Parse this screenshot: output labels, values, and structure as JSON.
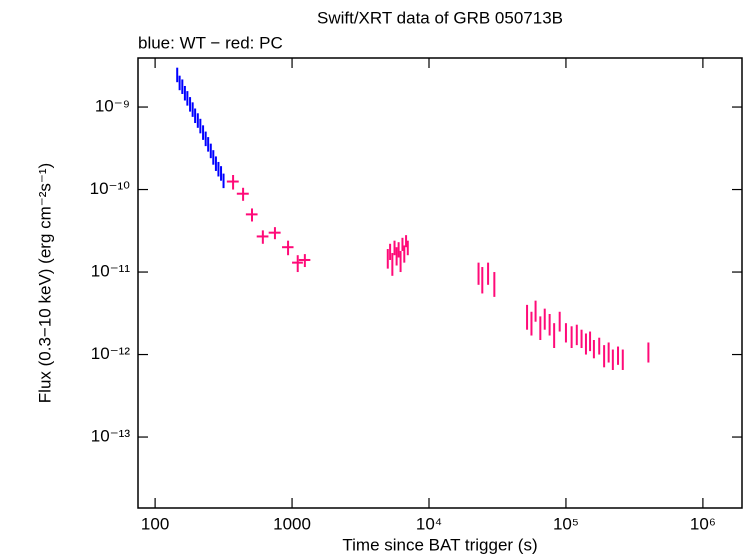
{
  "chart_data": {
    "type": "errorbar",
    "title": "Swift/XRT data of GRB 050713B",
    "subtitle": "blue: WT − red: PC",
    "x_label": "Time since BAT trigger (s)",
    "y_label": "Flux (0.3−10 keV) (erg cm⁻²s⁻¹)",
    "xscale": "log",
    "yscale": "log",
    "xlim": [
      75,
      1930000
    ],
    "ylim": [
      1.38e-14,
      3.93e-09
    ],
    "xticks": [
      100,
      1000,
      {
        "value": 10000,
        "label": "10⁴"
      },
      {
        "value": 100000,
        "label": "10⁵"
      },
      {
        "value": 1000000,
        "label": "10⁶"
      }
    ],
    "yticks": [
      {
        "value": 1e-09,
        "label": "10⁻⁹"
      },
      {
        "value": 1e-10,
        "label": "10⁻¹⁰"
      },
      {
        "value": 1e-11,
        "label": "10⁻¹¹"
      },
      {
        "value": 1e-12,
        "label": "10⁻¹²"
      },
      {
        "value": 1e-13,
        "label": "10⁻¹³"
      }
    ],
    "series": [
      {
        "name": "WT",
        "color": "#0000ff",
        "x": [
          145,
          151,
          158,
          165,
          172,
          180,
          188,
          196,
          205,
          214,
          224,
          234,
          244,
          255,
          266,
          278,
          290,
          303,
          316
        ],
        "values": [
          2.5e-09,
          2e-09,
          1.8e-09,
          1.5e-09,
          1.3e-09,
          1.1e-09,
          9.5e-10,
          8e-10,
          7e-10,
          6e-10,
          5e-10,
          4.2e-10,
          3.6e-10,
          3e-10,
          2.5e-10,
          2.1e-10,
          1.8e-10,
          1.6e-10,
          1.3e-10
        ],
        "errors": [
          5e-10,
          4e-10,
          3.6e-10,
          3e-10,
          2.6e-10,
          2.2e-10,
          1.9e-10,
          1.6e-10,
          1.4e-10,
          1.2e-10,
          1e-10,
          8.4e-11,
          7.2e-11,
          6e-11,
          5e-11,
          4.2e-11,
          3.6e-11,
          3.2e-11,
          2.6e-11
        ]
      },
      {
        "name": "PC",
        "color": "#ff0a78",
        "x": [
          371,
          439,
          510,
          612,
          750,
          935,
          1100,
          1240,
          5000,
          5200,
          5400,
          5600,
          5800,
          6000,
          6200,
          6400,
          6600,
          6800,
          7000,
          23000,
          24500,
          27000,
          30000,
          52000,
          56000,
          60000,
          65000,
          70000,
          76000,
          82000,
          90000,
          100000,
          110000,
          120000,
          130000,
          140000,
          150000,
          160000,
          175000,
          190000,
          205000,
          220000,
          240000,
          260000,
          400000
        ],
        "x_errors": [
          37,
          44,
          50,
          60,
          75,
          90,
          100,
          120,
          null,
          null,
          null,
          null,
          null,
          null,
          null,
          null,
          null,
          null,
          null,
          null,
          null,
          null,
          null,
          null,
          null,
          null,
          null,
          null,
          null,
          null,
          null,
          null,
          null,
          null,
          null,
          null,
          null,
          null,
          null,
          null,
          null,
          null,
          null,
          null,
          null
        ],
        "values": [
          1.25e-10,
          8.9e-11,
          5e-11,
          2.7e-11,
          3e-11,
          2e-11,
          1.3e-11,
          1.4e-11,
          1.5e-11,
          1.8e-11,
          1.3e-11,
          2e-11,
          1.6e-11,
          1.9e-11,
          1.4e-11,
          2.2e-11,
          1.7e-11,
          2.4e-11,
          2e-11,
          1e-11,
          8.5e-12,
          1e-11,
          7.5e-12,
          3e-12,
          2.5e-12,
          3.5e-12,
          2.2e-12,
          2.8e-12,
          2.4e-12,
          1.8e-12,
          2.6e-12,
          1.9e-12,
          1.7e-12,
          1.8e-12,
          1.6e-12,
          1.4e-12,
          1.5e-12,
          1.2e-12,
          1.3e-12,
          1e-12,
          1.1e-12,
          9e-13,
          1e-12,
          9e-13,
          1.1e-12
        ],
        "errors": [
          2.5e-11,
          1.6e-11,
          9e-12,
          5e-12,
          5e-12,
          4e-12,
          3e-12,
          2.5e-12,
          4e-12,
          4e-12,
          4e-12,
          4e-12,
          4e-12,
          4e-12,
          4e-12,
          4e-12,
          4e-12,
          4e-12,
          4e-12,
          3e-12,
          3e-12,
          3e-12,
          2.5e-12,
          1e-12,
          8e-13,
          1e-12,
          7e-13,
          8e-13,
          7e-13,
          6e-13,
          7e-13,
          5e-13,
          5e-13,
          5e-13,
          4e-13,
          4e-13,
          4e-13,
          3e-13,
          3e-13,
          3e-13,
          3e-13,
          2.5e-13,
          2.5e-13,
          2.5e-13,
          3e-13
        ]
      }
    ]
  }
}
